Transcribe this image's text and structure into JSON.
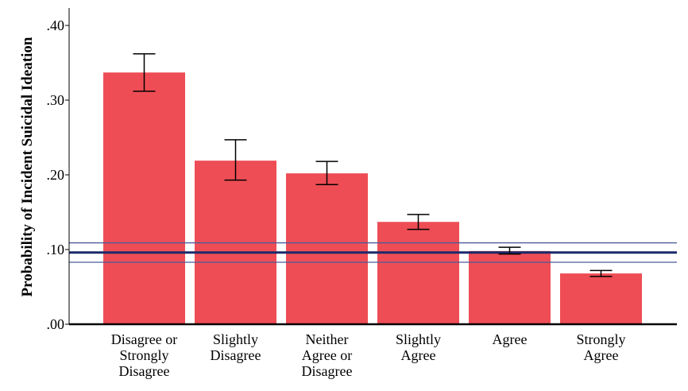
{
  "chart_data": {
    "type": "bar",
    "title": "",
    "xlabel": "",
    "ylabel": "Probability of Incident Suicidal Ideation",
    "ylim": [
      0,
      0.42
    ],
    "yticks": [
      0,
      0.1,
      0.2,
      0.3,
      0.4
    ],
    "ytick_labels": [
      ".00",
      ".10",
      ".20",
      ".30",
      ".40"
    ],
    "grid": false,
    "categories": [
      [
        "Disagree or",
        "Strongly",
        "Disagree"
      ],
      [
        "Slightly",
        "Disagree"
      ],
      [
        "Neither",
        "Agree or",
        "Disagree"
      ],
      [
        "Slightly",
        "Agree"
      ],
      [
        "Agree"
      ],
      [
        "Strongly",
        "Agree"
      ]
    ],
    "values": [
      0.337,
      0.219,
      0.202,
      0.137,
      0.098,
      0.068
    ],
    "error_low": [
      0.312,
      0.193,
      0.187,
      0.127,
      0.094,
      0.064
    ],
    "error_high": [
      0.362,
      0.247,
      0.218,
      0.147,
      0.103,
      0.072
    ],
    "reference_line": {
      "value": 0.096,
      "ci_low": 0.083,
      "ci_high": 0.109
    },
    "colors": {
      "bar": "#ee4d55",
      "reference": "#1b2a6b",
      "reference_ci": "#4a5b9a",
      "axis": "#000000",
      "errorbar": "#000000"
    }
  }
}
